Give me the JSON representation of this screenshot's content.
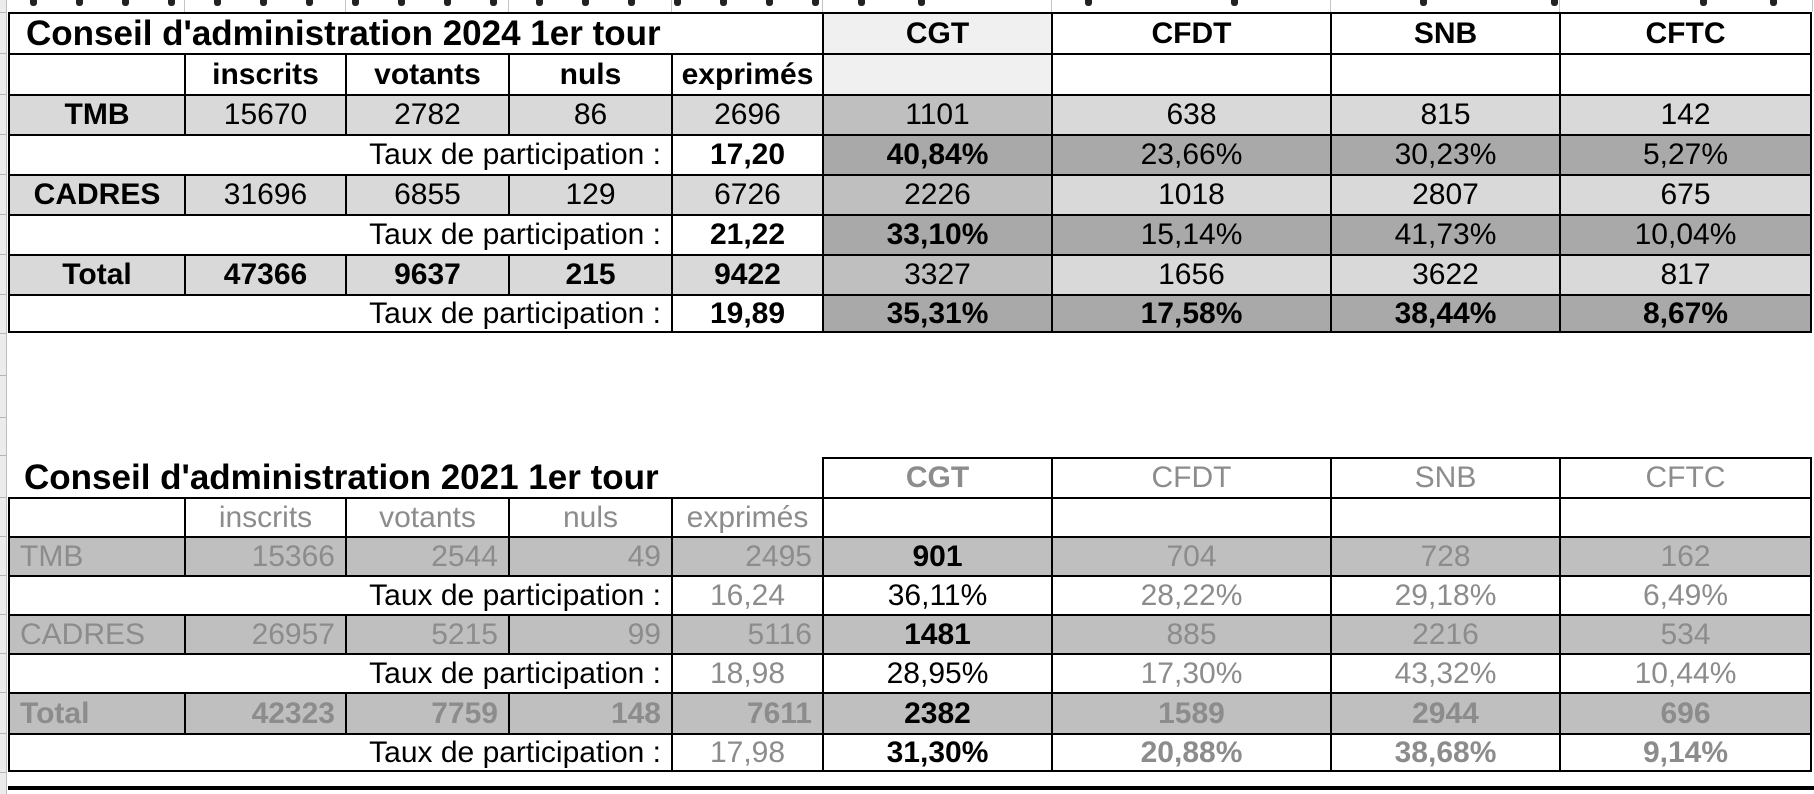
{
  "colors": {
    "green_indicator": "#118011",
    "shade_light": "#d9d9d9",
    "shade_mid": "#bfbfbf",
    "shade_dark": "#a9a9a9",
    "shade_tint": "#f0f0f0",
    "gray_text": "#8c8c8c",
    "border": "#000000"
  },
  "tables": [
    {
      "id": "2024",
      "title": "Conseil d'administration 2024 1er tour",
      "stat_headers": [
        "inscrits",
        "votants",
        "nuls",
        "exprimés"
      ],
      "union_headers": [
        "CGT",
        "CFDT",
        "SNB",
        "CFTC"
      ],
      "taux_label": "Taux de participation :",
      "groups": [
        {
          "label": "TMB",
          "stats": [
            "15670",
            "2782",
            "86",
            "2696"
          ],
          "union_votes": [
            "1101",
            "638",
            "815",
            "142"
          ],
          "taux": "17,20",
          "percents": [
            "40,84%",
            "23,66%",
            "30,23%",
            "5,27%"
          ]
        },
        {
          "label": "CADRES",
          "stats": [
            "31696",
            "6855",
            "129",
            "6726"
          ],
          "union_votes": [
            "2226",
            "1018",
            "2807",
            "675"
          ],
          "taux": "21,22",
          "percents": [
            "33,10%",
            "15,14%",
            "41,73%",
            "10,04%"
          ]
        },
        {
          "label": "Total",
          "stats": [
            "47366",
            "9637",
            "215",
            "9422"
          ],
          "union_votes": [
            "3327",
            "1656",
            "3622",
            "817"
          ],
          "taux": "19,89",
          "percents": [
            "35,31%",
            "17,58%",
            "38,44%",
            "8,67%"
          ]
        }
      ]
    },
    {
      "id": "2021",
      "title": "Conseil d'administration 2021 1er tour",
      "stat_headers": [
        "inscrits",
        "votants",
        "nuls",
        "exprimés"
      ],
      "union_headers": [
        "CGT",
        "CFDT",
        "SNB",
        "CFTC"
      ],
      "taux_label": "Taux de participation :",
      "groups": [
        {
          "label": "TMB",
          "stats": [
            "15366",
            "2544",
            "49",
            "2495"
          ],
          "union_votes": [
            "901",
            "704",
            "728",
            "162"
          ],
          "taux": "16,24",
          "percents": [
            "36,11%",
            "28,22%",
            "29,18%",
            "6,49%"
          ]
        },
        {
          "label": "CADRES",
          "stats": [
            "26957",
            "5215",
            "99",
            "5116"
          ],
          "union_votes": [
            "1481",
            "885",
            "2216",
            "534"
          ],
          "taux": "18,98",
          "percents": [
            "28,95%",
            "17,30%",
            "43,32%",
            "10,44%"
          ]
        },
        {
          "label": "Total",
          "stats": [
            "42323",
            "7759",
            "148",
            "7611"
          ],
          "union_votes": [
            "2382",
            "1589",
            "2944",
            "696"
          ],
          "taux": "17,98",
          "percents": [
            "31,30%",
            "20,88%",
            "38,68%",
            "9,14%"
          ]
        }
      ]
    }
  ]
}
